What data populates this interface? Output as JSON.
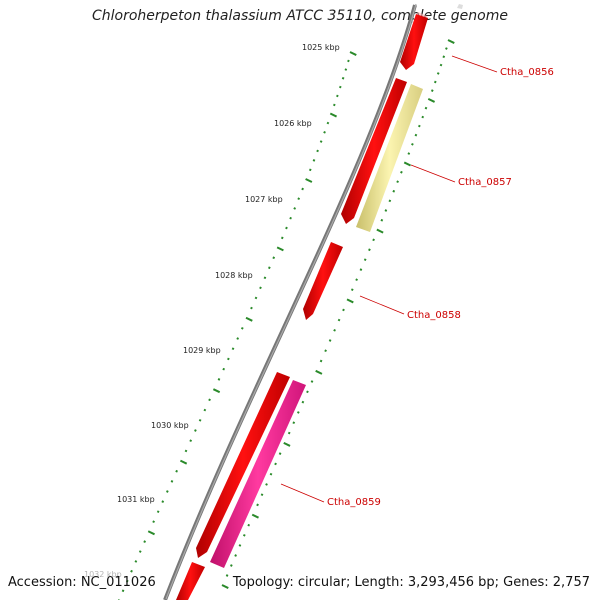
{
  "title": "Chloroherpeton thalassium ATCC 35110, complete genome",
  "accession": "Accession: NC_011026",
  "summary": "Topology: circular; Length: 3,293,456 bp; Genes: 2,757",
  "ruler_ticks": [
    "1025 kbp",
    "1026 kbp",
    "1027 kbp",
    "1028 kbp",
    "1029 kbp",
    "1030 kbp",
    "1031 kbp",
    "1032 kbp"
  ],
  "gene_labels": [
    "Ctha_0856",
    "Ctha_0857",
    "Ctha_0858",
    "Ctha_0859"
  ],
  "colors": {
    "forward_gene": "#ee0000",
    "rrna_gene": "#f5eea0",
    "highlight_gene": "#ee1f8c",
    "backbone": "#777777",
    "tick_green": "#2a8a2a",
    "label_red": "#cc0000"
  }
}
